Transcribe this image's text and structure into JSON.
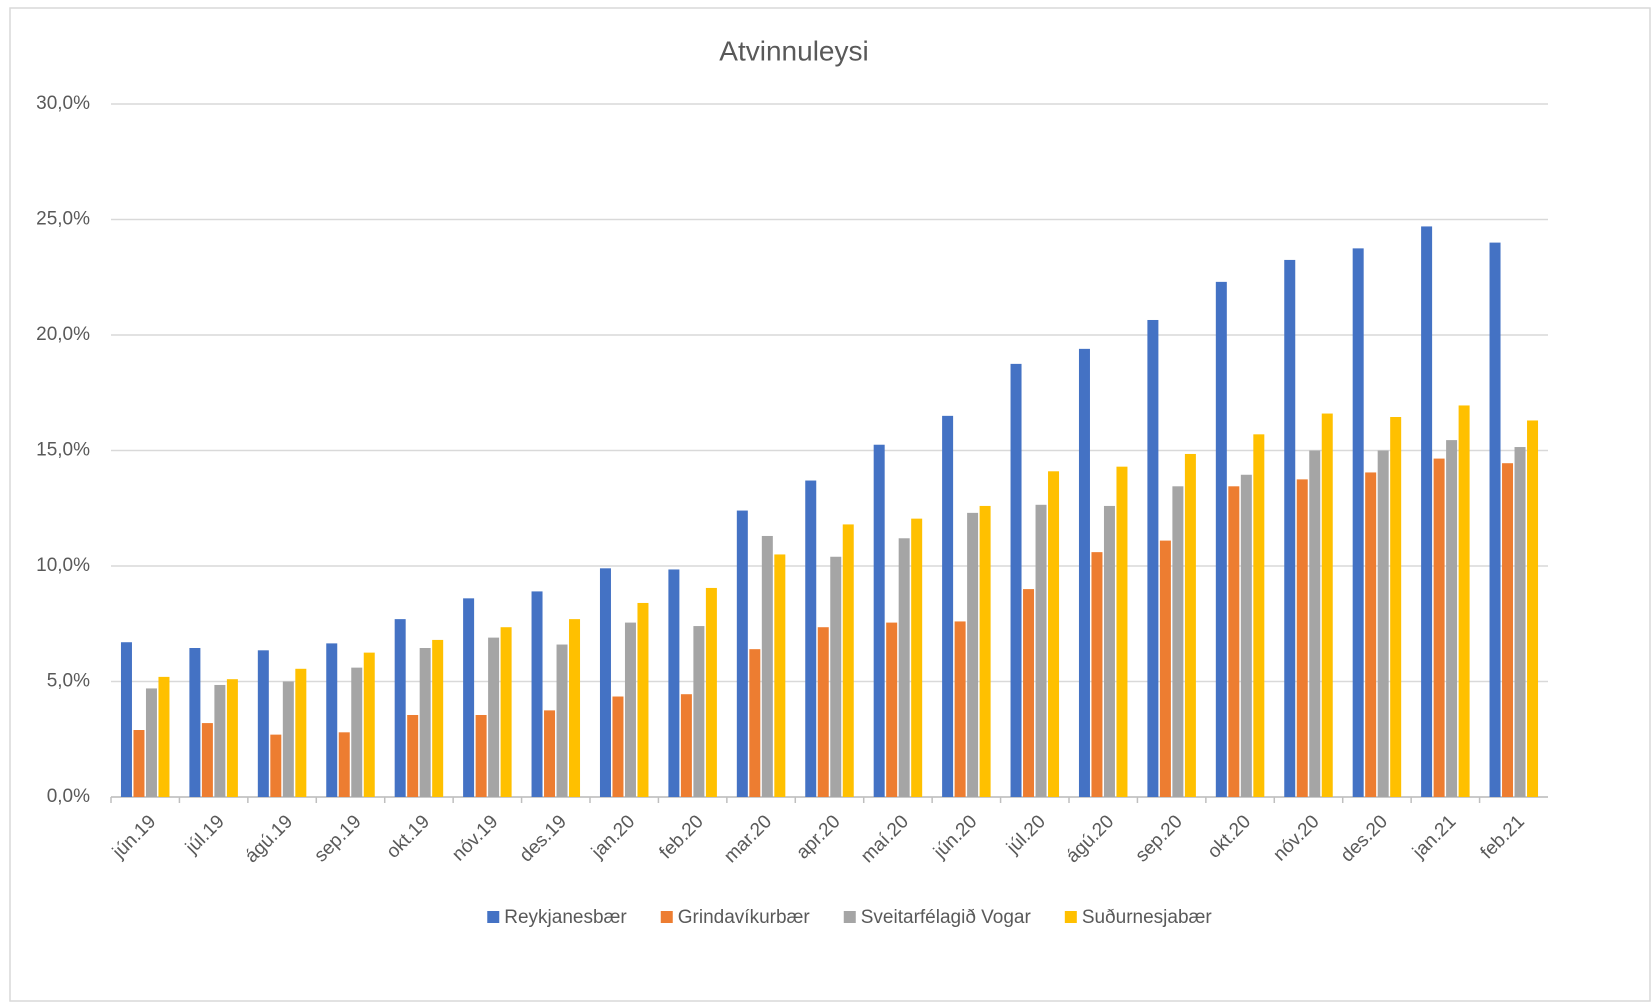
{
  "chart_data": {
    "type": "bar",
    "title": "Atvinnuleysi",
    "categories": [
      "jún.19",
      "júl.19",
      "ágú.19",
      "sep.19",
      "okt.19",
      "nóv.19",
      "des.19",
      "jan.20",
      "feb.20",
      "mar.20",
      "apr.20",
      "maí.20",
      "jún.20",
      "júl.20",
      "ágú.20",
      "sep.20",
      "okt.20",
      "nóv.20",
      "des.20",
      "jan.21",
      "feb.21"
    ],
    "series": [
      {
        "name": "Reykjanesbær",
        "color": "#4472c4",
        "values": [
          6.7,
          6.45,
          6.35,
          6.65,
          7.7,
          8.6,
          8.9,
          9.9,
          9.85,
          12.4,
          13.7,
          15.25,
          16.5,
          18.75,
          19.4,
          20.65,
          22.3,
          23.25,
          23.75,
          24.7,
          24.0
        ]
      },
      {
        "name": "Grindavíkurbær",
        "color": "#ed7d31",
        "values": [
          2.9,
          3.2,
          2.7,
          2.8,
          3.55,
          3.55,
          3.75,
          4.35,
          4.45,
          6.4,
          7.35,
          7.55,
          7.6,
          9.0,
          10.6,
          11.1,
          13.45,
          13.75,
          14.05,
          14.65,
          14.45
        ]
      },
      {
        "name": "Sveitarfélagið Vogar",
        "color": "#a5a5a5",
        "values": [
          4.7,
          4.85,
          5.0,
          5.6,
          6.45,
          6.9,
          6.6,
          7.55,
          7.4,
          11.3,
          10.4,
          11.2,
          12.3,
          12.65,
          12.6,
          13.45,
          13.95,
          15.0,
          15.0,
          15.45,
          15.15
        ]
      },
      {
        "name": "Suðurnesjabær",
        "color": "#ffc000",
        "values": [
          5.2,
          5.1,
          5.55,
          6.25,
          6.8,
          7.35,
          7.7,
          8.4,
          9.05,
          10.5,
          11.8,
          12.05,
          12.6,
          14.1,
          14.3,
          14.85,
          15.7,
          16.6,
          16.45,
          16.95,
          16.3
        ]
      }
    ],
    "ylim": [
      0,
      30
    ],
    "yticks": [
      {
        "value": 0,
        "label": "0,0%"
      },
      {
        "value": 5,
        "label": "5,0%"
      },
      {
        "value": 10,
        "label": "10,0%"
      },
      {
        "value": 15,
        "label": "15,0%"
      },
      {
        "value": 20,
        "label": "20,0%"
      },
      {
        "value": 25,
        "label": "25,0%"
      },
      {
        "value": 30,
        "label": "30,0%"
      }
    ],
    "grid": true,
    "legend": "bottom"
  }
}
